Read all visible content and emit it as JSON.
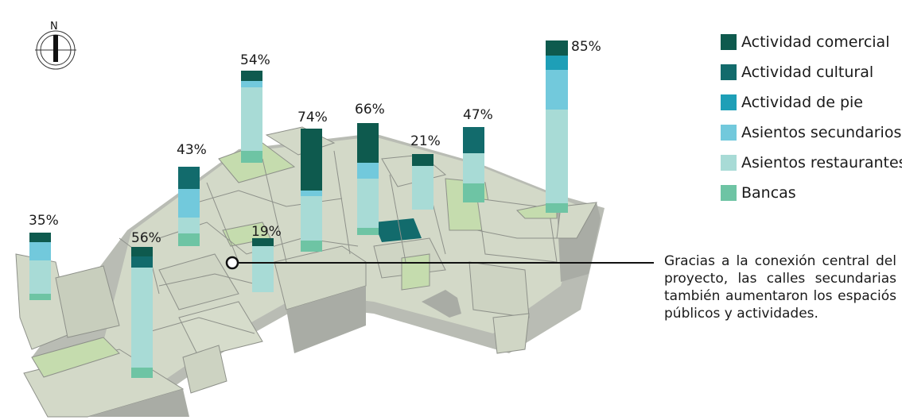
{
  "colors": {
    "actividad_comercial": "#0e5a4e",
    "actividad_cultural": "#126b6c",
    "actividad_de_pie": "#1e9fb7",
    "asientos_secundarios": "#72c9dc",
    "asientos_restaurantes": "#a8dbd6",
    "bancas": "#6ec4a4",
    "building_top": "#d3d9c8",
    "building_side": "#a9aca5",
    "green_area": "#c5dcae"
  },
  "compass": {
    "label": "N",
    "icon": "north-compass-icon"
  },
  "legend": [
    {
      "key": "actividad_comercial",
      "label": "Actividad comercial"
    },
    {
      "key": "actividad_cultural",
      "label": "Actividad cultural"
    },
    {
      "key": "actividad_de_pie",
      "label": "Actividad de pie"
    },
    {
      "key": "asientos_secundarios",
      "label": "Asientos secundarios"
    },
    {
      "key": "asientos_restaurantes",
      "label": "Asientos restaurantes"
    },
    {
      "key": "bancas",
      "label": "Bancas"
    }
  ],
  "caption": "Gracias a la conexión central del proyecto, las calles secundarias también aumentaron los espaciós públicos y actividades.",
  "columns": [
    {
      "label": "35%",
      "value": 35
    },
    {
      "label": "56%",
      "value": 56
    },
    {
      "label": "43%",
      "value": 43
    },
    {
      "label": "54%",
      "value": 54
    },
    {
      "label": "19%",
      "value": 19
    },
    {
      "label": "74%",
      "value": 74
    },
    {
      "label": "66%",
      "value": 66
    },
    {
      "label": "21%",
      "value": 21
    },
    {
      "label": "47%",
      "value": 47
    },
    {
      "label": "85%",
      "value": 85
    }
  ]
}
